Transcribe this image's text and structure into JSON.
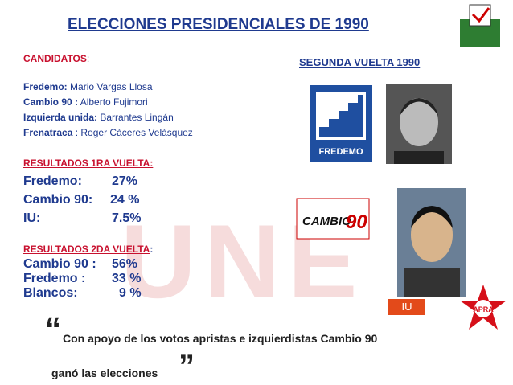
{
  "header": {
    "title": "ELECCIONES PRESIDENCIALES DE 1990"
  },
  "candidates": {
    "heading": "CANDIDATOS",
    "heading_punct": ":",
    "items": [
      {
        "party": "Fredemo:",
        "name": "Mario Vargas Llosa"
      },
      {
        "party": "Cambio 90 :",
        "name": "Alberto Fujimori"
      },
      {
        "party": "Izquierda unida:",
        "name": "Barrantes Lingán"
      },
      {
        "party": "Frenatraca",
        "name": ": Roger Cáceres Velásquez"
      }
    ]
  },
  "second_round_title": "SEGUNDA VUELTA 1990",
  "first_round": {
    "heading": "RESULTADOS 1RA VUELTA:",
    "rows": [
      {
        "label": "Fredemo:",
        "value": "27%"
      },
      {
        "label": "Cambio 90:",
        "value": "24 %"
      },
      {
        "label": "IU:",
        "value": "7.5%"
      }
    ]
  },
  "second_round": {
    "heading": "RESULTADOS 2DA VUELTA",
    "heading_punct": ":",
    "rows": [
      {
        "label": "Cambio 90 :",
        "value": "56%"
      },
      {
        "label": "Fredemo :",
        "value": "33 %"
      },
      {
        "label": "Blancos:",
        "value": "9 %"
      }
    ]
  },
  "logos": {
    "fredemo": "FREDEMO",
    "cambio": "CAMBIO",
    "cambio_num": "90",
    "apra": "APRA",
    "iu": "IU",
    "watermark": "UNE"
  },
  "quote": {
    "open": "“",
    "line1": "Con apoyo de los votos apristas e izquierdistas Cambio 90",
    "line2": "ganó las elecciones",
    "close": "”"
  }
}
